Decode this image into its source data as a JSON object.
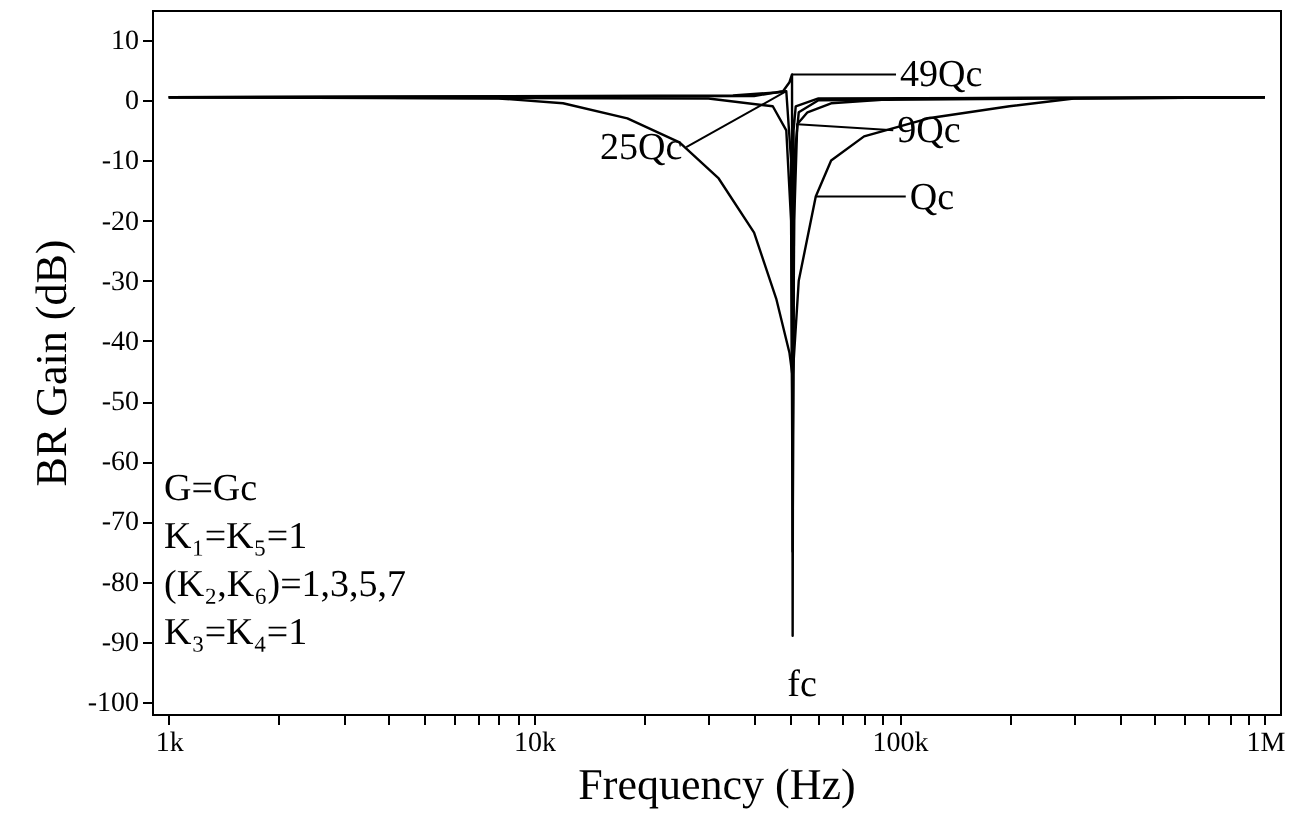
{
  "chart_data": {
    "type": "line",
    "xlabel": "Frequency (Hz)",
    "ylabel": "BR Gain (dB)",
    "log": "x",
    "xlim": [
      900,
      1100000
    ],
    "ylim": [
      -102,
      15
    ],
    "xticks": [
      {
        "value": 1000,
        "label": "1k"
      },
      {
        "value": 2000,
        "label": null
      },
      {
        "value": 3000,
        "label": null
      },
      {
        "value": 4000,
        "label": null
      },
      {
        "value": 5000,
        "label": null
      },
      {
        "value": 6000,
        "label": null
      },
      {
        "value": 7000,
        "label": null
      },
      {
        "value": 8000,
        "label": null
      },
      {
        "value": 9000,
        "label": null
      },
      {
        "value": 10000,
        "label": "10k"
      },
      {
        "value": 20000,
        "label": null
      },
      {
        "value": 30000,
        "label": null
      },
      {
        "value": 40000,
        "label": null
      },
      {
        "value": 50000,
        "label": null
      },
      {
        "value": 60000,
        "label": null
      },
      {
        "value": 70000,
        "label": null
      },
      {
        "value": 80000,
        "label": null
      },
      {
        "value": 90000,
        "label": null
      },
      {
        "value": 100000,
        "label": "100k"
      },
      {
        "value": 200000,
        "label": null
      },
      {
        "value": 300000,
        "label": null
      },
      {
        "value": 400000,
        "label": null
      },
      {
        "value": 500000,
        "label": null
      },
      {
        "value": 600000,
        "label": null
      },
      {
        "value": 700000,
        "label": null
      },
      {
        "value": 800000,
        "label": null
      },
      {
        "value": 900000,
        "label": null
      },
      {
        "value": 1000000,
        "label": "1M"
      }
    ],
    "yticks": [
      -100,
      -90,
      -80,
      -70,
      -60,
      -50,
      -40,
      -30,
      -20,
      -10,
      0,
      10
    ],
    "grid": false,
    "marker": "none",
    "line_style": "solid",
    "series": [
      {
        "color": "#000000",
        "x": [
          1000,
          8000,
          12000,
          18000,
          25000,
          32000,
          40000,
          46000,
          50000,
          51000,
          53000,
          59000,
          65000,
          80000,
          120000,
          200000,
          300000,
          1000000
        ],
        "values": [
          0.5,
          0.3,
          -0.5,
          -3,
          -7,
          -13,
          -22,
          -33,
          -42,
          -46,
          -30,
          -16,
          -10,
          -6,
          -3,
          -1,
          0.3,
          0.5
        ]
      },
      {
        "color": "#000000",
        "x": [
          1000,
          30000,
          45000,
          49000,
          50500,
          51000,
          51500,
          52500,
          56000,
          65000,
          100000,
          1000000
        ],
        "values": [
          0.5,
          0.3,
          -1,
          -5,
          -20,
          -60,
          -20,
          -4,
          -2,
          -0.5,
          0.3,
          0.5
        ]
      },
      {
        "color": "#000000",
        "x": [
          1000,
          35000,
          46000,
          49000,
          50500,
          51000,
          51500,
          53000,
          60000,
          1000000
        ],
        "values": [
          0.5,
          0.8,
          1.3,
          1.5,
          -10,
          -75,
          -10,
          -2,
          0,
          0.5
        ]
      },
      {
        "color": "#000000",
        "x": [
          1000,
          40000,
          48000,
          50000,
          50800,
          51000,
          51300,
          52000,
          60000,
          1000000
        ],
        "values": [
          0.5,
          0.7,
          1.5,
          3,
          4.3,
          -89,
          -5,
          -1,
          0.3,
          0.5
        ]
      }
    ],
    "annotations": [
      {
        "text": "49Qc",
        "x": 50800,
        "y": 4.3
      },
      {
        "text": "25Qc",
        "x": 49000,
        "y": 1.5
      },
      {
        "text": "9Qc",
        "x": 52500,
        "y": -4
      },
      {
        "text": "Qc",
        "x": 59000,
        "y": -16
      },
      "fc",
      "G=Gc",
      "K₁=K₅=1",
      "(K₂,K₆)=1,3,5,7",
      "K₃=K₄=1"
    ]
  }
}
